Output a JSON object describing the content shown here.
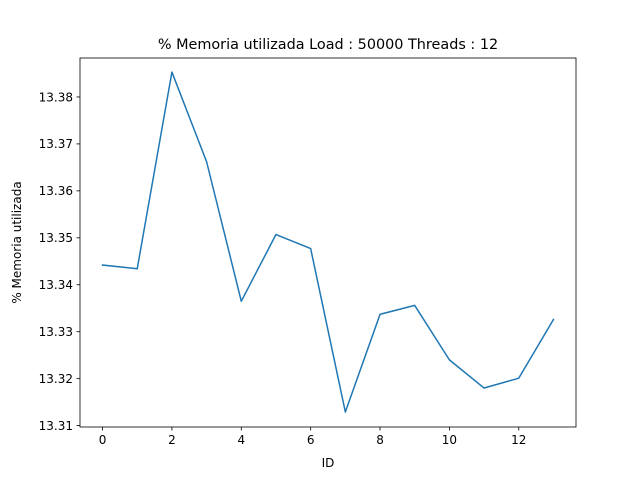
{
  "chart_data": {
    "type": "line",
    "title": "% Memoria utilizada Load : 50000 Threads : 12",
    "xlabel": "ID",
    "ylabel": "% Memoria utilizada",
    "xlim": [
      -0.65,
      13.65
    ],
    "ylim": [
      13.3097,
      13.3883
    ],
    "xticks": [
      0,
      2,
      4,
      6,
      8,
      10,
      12
    ],
    "yticks": [
      13.31,
      13.32,
      13.33,
      13.34,
      13.35,
      13.36,
      13.37,
      13.38
    ],
    "ytick_labels": [
      "13.31",
      "13.32",
      "13.33",
      "13.34",
      "13.35",
      "13.36",
      "13.37",
      "13.38"
    ],
    "grid": false,
    "series": [
      {
        "color": "#1f77b4",
        "x": [
          0,
          1,
          2,
          3,
          4,
          5,
          6,
          7,
          8,
          9,
          10,
          11,
          12,
          13
        ],
        "values": [
          13.3442,
          13.3434,
          13.3853,
          13.3662,
          13.3365,
          13.3507,
          13.3477,
          13.3129,
          13.3337,
          13.3356,
          13.324,
          13.318,
          13.3201,
          13.3326
        ]
      }
    ]
  }
}
